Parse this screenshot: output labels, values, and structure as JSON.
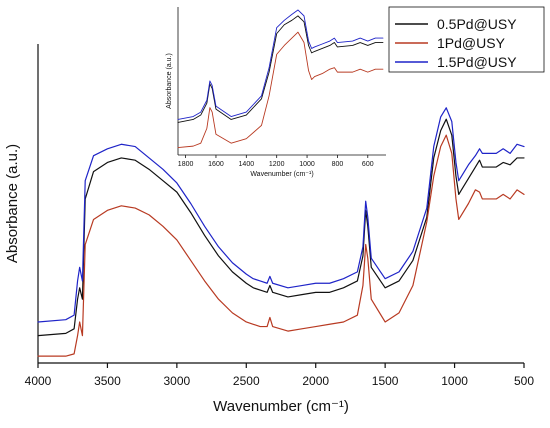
{
  "chart_data": [
    {
      "type": "line",
      "title": "",
      "xlabel": "Wavenumber (cm⁻¹)",
      "ylabel": "Absorbance (a.u.)",
      "xlim": [
        4000,
        500
      ],
      "x_reversed": true,
      "ylim": [
        0,
        1.4
      ],
      "y_ticks_shown": false,
      "grid": false,
      "x_ticks": [
        "4000",
        "3500",
        "3000",
        "2500",
        "2000",
        "1500",
        "1000",
        "500"
      ],
      "series": [
        {
          "name": "0.5Pd@USY",
          "color": "#111111",
          "points": [
            [
              4000,
              0.12
            ],
            [
              3800,
              0.13
            ],
            [
              3740,
              0.15
            ],
            [
              3715,
              0.28
            ],
            [
              3700,
              0.33
            ],
            [
              3680,
              0.28
            ],
            [
              3660,
              0.72
            ],
            [
              3600,
              0.84
            ],
            [
              3500,
              0.88
            ],
            [
              3400,
              0.9
            ],
            [
              3300,
              0.89
            ],
            [
              3200,
              0.85
            ],
            [
              3100,
              0.8
            ],
            [
              3000,
              0.75
            ],
            [
              2900,
              0.66
            ],
            [
              2800,
              0.56
            ],
            [
              2700,
              0.47
            ],
            [
              2600,
              0.4
            ],
            [
              2500,
              0.35
            ],
            [
              2450,
              0.33
            ],
            [
              2400,
              0.32
            ],
            [
              2350,
              0.31
            ],
            [
              2330,
              0.34
            ],
            [
              2310,
              0.31
            ],
            [
              2200,
              0.29
            ],
            [
              2100,
              0.3
            ],
            [
              2000,
              0.31
            ],
            [
              1900,
              0.31
            ],
            [
              1800,
              0.33
            ],
            [
              1700,
              0.36
            ],
            [
              1660,
              0.47
            ],
            [
              1640,
              0.67
            ],
            [
              1625,
              0.6
            ],
            [
              1600,
              0.42
            ],
            [
              1500,
              0.33
            ],
            [
              1400,
              0.36
            ],
            [
              1300,
              0.45
            ],
            [
              1200,
              0.64
            ],
            [
              1150,
              0.9
            ],
            [
              1100,
              1.02
            ],
            [
              1060,
              1.07
            ],
            [
              1020,
              1.0
            ],
            [
              990,
              0.82
            ],
            [
              970,
              0.74
            ],
            [
              950,
              0.76
            ],
            [
              900,
              0.81
            ],
            [
              850,
              0.86
            ],
            [
              820,
              0.89
            ],
            [
              800,
              0.86
            ],
            [
              700,
              0.86
            ],
            [
              650,
              0.88
            ],
            [
              600,
              0.87
            ],
            [
              550,
              0.9
            ],
            [
              500,
              0.9
            ]
          ]
        },
        {
          "name": "1Pd@USY",
          "color": "#b83a22",
          "points": [
            [
              4000,
              0.03
            ],
            [
              3800,
              0.03
            ],
            [
              3740,
              0.04
            ],
            [
              3715,
              0.12
            ],
            [
              3700,
              0.18
            ],
            [
              3680,
              0.12
            ],
            [
              3660,
              0.52
            ],
            [
              3600,
              0.63
            ],
            [
              3500,
              0.67
            ],
            [
              3400,
              0.69
            ],
            [
              3300,
              0.68
            ],
            [
              3200,
              0.65
            ],
            [
              3100,
              0.6
            ],
            [
              3000,
              0.54
            ],
            [
              2900,
              0.45
            ],
            [
              2800,
              0.36
            ],
            [
              2700,
              0.28
            ],
            [
              2600,
              0.22
            ],
            [
              2500,
              0.18
            ],
            [
              2450,
              0.17
            ],
            [
              2400,
              0.16
            ],
            [
              2350,
              0.16
            ],
            [
              2330,
              0.2
            ],
            [
              2310,
              0.16
            ],
            [
              2200,
              0.14
            ],
            [
              2100,
              0.15
            ],
            [
              2000,
              0.16
            ],
            [
              1900,
              0.17
            ],
            [
              1800,
              0.18
            ],
            [
              1700,
              0.21
            ],
            [
              1660,
              0.34
            ],
            [
              1640,
              0.52
            ],
            [
              1625,
              0.46
            ],
            [
              1600,
              0.28
            ],
            [
              1500,
              0.18
            ],
            [
              1400,
              0.22
            ],
            [
              1300,
              0.34
            ],
            [
              1200,
              0.62
            ],
            [
              1150,
              0.82
            ],
            [
              1100,
              0.95
            ],
            [
              1060,
              1.0
            ],
            [
              1020,
              0.92
            ],
            [
              990,
              0.72
            ],
            [
              970,
              0.63
            ],
            [
              950,
              0.65
            ],
            [
              900,
              0.7
            ],
            [
              850,
              0.76
            ],
            [
              820,
              0.75
            ],
            [
              800,
              0.72
            ],
            [
              700,
              0.72
            ],
            [
              650,
              0.74
            ],
            [
              600,
              0.72
            ],
            [
              550,
              0.76
            ],
            [
              500,
              0.74
            ]
          ]
        },
        {
          "name": "1.5Pd@USY",
          "color": "#1f24c8",
          "points": [
            [
              4000,
              0.18
            ],
            [
              3800,
              0.19
            ],
            [
              3740,
              0.21
            ],
            [
              3715,
              0.36
            ],
            [
              3700,
              0.42
            ],
            [
              3680,
              0.36
            ],
            [
              3660,
              0.8
            ],
            [
              3600,
              0.91
            ],
            [
              3500,
              0.94
            ],
            [
              3400,
              0.96
            ],
            [
              3300,
              0.95
            ],
            [
              3200,
              0.9
            ],
            [
              3100,
              0.85
            ],
            [
              3000,
              0.79
            ],
            [
              2900,
              0.7
            ],
            [
              2800,
              0.6
            ],
            [
              2700,
              0.51
            ],
            [
              2600,
              0.44
            ],
            [
              2500,
              0.39
            ],
            [
              2450,
              0.37
            ],
            [
              2400,
              0.36
            ],
            [
              2350,
              0.35
            ],
            [
              2330,
              0.38
            ],
            [
              2310,
              0.35
            ],
            [
              2200,
              0.33
            ],
            [
              2100,
              0.34
            ],
            [
              2000,
              0.35
            ],
            [
              1900,
              0.35
            ],
            [
              1800,
              0.37
            ],
            [
              1700,
              0.4
            ],
            [
              1660,
              0.51
            ],
            [
              1640,
              0.71
            ],
            [
              1625,
              0.64
            ],
            [
              1600,
              0.46
            ],
            [
              1500,
              0.37
            ],
            [
              1400,
              0.4
            ],
            [
              1300,
              0.49
            ],
            [
              1200,
              0.68
            ],
            [
              1150,
              0.95
            ],
            [
              1100,
              1.08
            ],
            [
              1060,
              1.12
            ],
            [
              1020,
              1.06
            ],
            [
              990,
              0.88
            ],
            [
              970,
              0.8
            ],
            [
              950,
              0.82
            ],
            [
              900,
              0.87
            ],
            [
              850,
              0.91
            ],
            [
              820,
              0.94
            ],
            [
              800,
              0.92
            ],
            [
              700,
              0.92
            ],
            [
              650,
              0.94
            ],
            [
              600,
              0.92
            ],
            [
              550,
              0.96
            ],
            [
              500,
              0.95
            ]
          ]
        }
      ],
      "legend": {
        "placement": "top-right",
        "entries": [
          "0.5Pd@USY",
          "1Pd@USY",
          "1.5Pd@USY"
        ]
      }
    },
    {
      "type": "line",
      "title": "",
      "xlabel": "Wavenumber (cm⁻¹)",
      "ylabel": "Absorbance (a.u.)",
      "xlim": [
        1850,
        480
      ],
      "x_reversed": true,
      "ylim": [
        0,
        1.0
      ],
      "y_ticks_shown": false,
      "grid": false,
      "x_ticks": [
        "1800",
        "1600",
        "1400",
        "1200",
        "1000",
        "800",
        "600"
      ],
      "series": [
        {
          "name": "0.5Pd@USY",
          "color": "#111111",
          "points": [
            [
              1850,
              0.22
            ],
            [
              1750,
              0.24
            ],
            [
              1700,
              0.27
            ],
            [
              1660,
              0.35
            ],
            [
              1640,
              0.48
            ],
            [
              1625,
              0.45
            ],
            [
              1600,
              0.31
            ],
            [
              1500,
              0.24
            ],
            [
              1400,
              0.27
            ],
            [
              1300,
              0.38
            ],
            [
              1250,
              0.56
            ],
            [
              1200,
              0.82
            ],
            [
              1150,
              0.88
            ],
            [
              1100,
              0.91
            ],
            [
              1060,
              0.94
            ],
            [
              1020,
              0.9
            ],
            [
              990,
              0.74
            ],
            [
              970,
              0.69
            ],
            [
              950,
              0.7
            ],
            [
              900,
              0.72
            ],
            [
              850,
              0.74
            ],
            [
              820,
              0.76
            ],
            [
              800,
              0.73
            ],
            [
              700,
              0.74
            ],
            [
              650,
              0.76
            ],
            [
              600,
              0.74
            ],
            [
              550,
              0.76
            ],
            [
              500,
              0.76
            ]
          ]
        },
        {
          "name": "1Pd@USY",
          "color": "#b83a22",
          "points": [
            [
              1850,
              0.05
            ],
            [
              1750,
              0.06
            ],
            [
              1700,
              0.08
            ],
            [
              1660,
              0.18
            ],
            [
              1640,
              0.32
            ],
            [
              1625,
              0.29
            ],
            [
              1600,
              0.14
            ],
            [
              1500,
              0.08
            ],
            [
              1400,
              0.11
            ],
            [
              1300,
              0.2
            ],
            [
              1250,
              0.4
            ],
            [
              1200,
              0.68
            ],
            [
              1150,
              0.74
            ],
            [
              1100,
              0.79
            ],
            [
              1060,
              0.83
            ],
            [
              1020,
              0.76
            ],
            [
              990,
              0.57
            ],
            [
              970,
              0.51
            ],
            [
              950,
              0.53
            ],
            [
              900,
              0.55
            ],
            [
              850,
              0.58
            ],
            [
              820,
              0.59
            ],
            [
              800,
              0.56
            ],
            [
              700,
              0.56
            ],
            [
              650,
              0.58
            ],
            [
              600,
              0.56
            ],
            [
              550,
              0.58
            ],
            [
              500,
              0.58
            ]
          ]
        },
        {
          "name": "1.5Pd@USY",
          "color": "#1f24c8",
          "points": [
            [
              1850,
              0.24
            ],
            [
              1750,
              0.26
            ],
            [
              1700,
              0.29
            ],
            [
              1660,
              0.37
            ],
            [
              1640,
              0.5
            ],
            [
              1625,
              0.47
            ],
            [
              1600,
              0.33
            ],
            [
              1500,
              0.26
            ],
            [
              1400,
              0.29
            ],
            [
              1300,
              0.4
            ],
            [
              1250,
              0.59
            ],
            [
              1200,
              0.86
            ],
            [
              1150,
              0.91
            ],
            [
              1100,
              0.95
            ],
            [
              1060,
              0.98
            ],
            [
              1020,
              0.94
            ],
            [
              990,
              0.77
            ],
            [
              970,
              0.72
            ],
            [
              950,
              0.73
            ],
            [
              900,
              0.75
            ],
            [
              850,
              0.77
            ],
            [
              820,
              0.79
            ],
            [
              800,
              0.76
            ],
            [
              700,
              0.77
            ],
            [
              650,
              0.79
            ],
            [
              600,
              0.77
            ],
            [
              550,
              0.79
            ],
            [
              500,
              0.79
            ]
          ]
        }
      ]
    }
  ]
}
